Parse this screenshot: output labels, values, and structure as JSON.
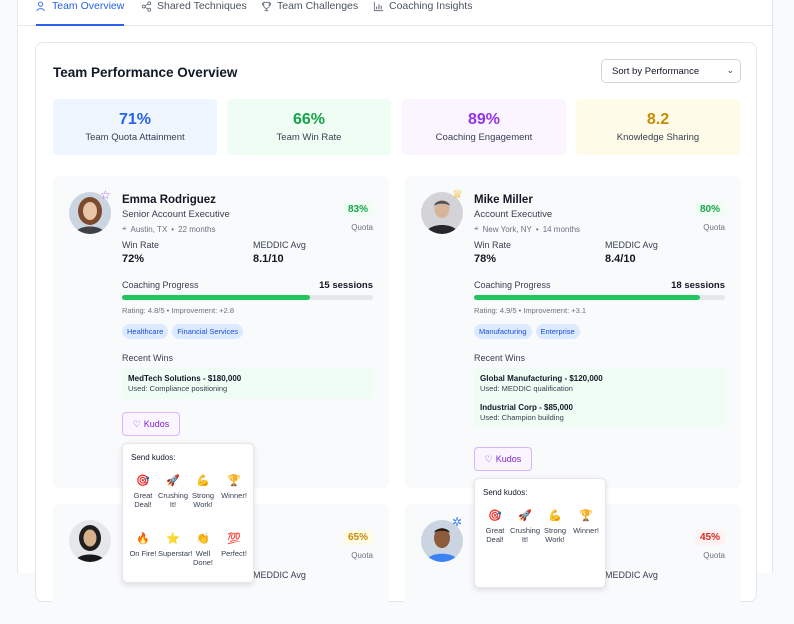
{
  "tabs": [
    {
      "label": "Team Overview",
      "icon": "users-icon",
      "active": true
    },
    {
      "label": "Shared Techniques",
      "icon": "share-icon",
      "active": false
    },
    {
      "label": "Team Challenges",
      "icon": "trophy-icon",
      "active": false
    },
    {
      "label": "Coaching Insights",
      "icon": "bar-chart-icon",
      "active": false
    }
  ],
  "panel": {
    "title": "Team Performance Overview",
    "sort_value": "Sort by Performance"
  },
  "stats": [
    {
      "value": "71%",
      "label": "Team Quota Attainment",
      "bg": "#eff6ff",
      "color": "#2563eb"
    },
    {
      "value": "66%",
      "label": "Team Win Rate",
      "bg": "#f0fdf4",
      "color": "#16a34a"
    },
    {
      "value": "89%",
      "label": "Coaching Engagement",
      "bg": "#faf5ff",
      "color": "#9333ea"
    },
    {
      "value": "8.2",
      "label": "Knowledge Sharing",
      "bg": "#fefce8",
      "color": "#ca8a04"
    }
  ],
  "cards": [
    {
      "name": "Emma Rodriguez",
      "role": "Senior Account Executive",
      "location": "Austin, TX",
      "tenure": "22 months",
      "quota": "83%",
      "quota_label": "Quota",
      "win_rate_label": "Win Rate",
      "win_rate": "72%",
      "meddic_label": "MEDDIC Avg",
      "meddic": "8.1/10",
      "coaching_label": "Coaching Progress",
      "sessions": "15 sessions",
      "progress": 0.75,
      "rating": "Rating: 4.8/5 • Improvement: +2.8",
      "tags": [
        "Healthcare",
        "Financial Services"
      ],
      "recent_wins_label": "Recent Wins",
      "wins": [
        {
          "name": "MedTech Solutions - $180,000",
          "used": "Used: Compliance positioning"
        }
      ],
      "kudos_label": "Kudos",
      "badge": "star-icon"
    },
    {
      "name": "Mike Miller",
      "role": "Account Executive",
      "location": "New York, NY",
      "tenure": "14 months",
      "quota": "80%",
      "quota_label": "Quota",
      "win_rate_label": "Win Rate",
      "win_rate": "78%",
      "meddic_label": "MEDDIC Avg",
      "meddic": "8.4/10",
      "coaching_label": "Coaching Progress",
      "sessions": "18 sessions",
      "progress": 0.9,
      "rating": "Rating: 4.9/5 • Improvement: +3.1",
      "tags": [
        "Manufacturing",
        "Enterprise"
      ],
      "recent_wins_label": "Recent Wins",
      "wins": [
        {
          "name": "Global Manufacturing - $120,000",
          "used": "Used: MEDDIC qualification"
        },
        {
          "name": "Industrial Corp - $85,000",
          "used": "Used: Champion building"
        }
      ],
      "kudos_label": "Kudos",
      "badge": "crown-icon"
    },
    {
      "quota": "65%",
      "quota_label": "Quota",
      "meddic_label": "MEDDIC Avg"
    },
    {
      "quota": "45%",
      "quota_label": "Quota",
      "meddic_label": "MEDDIC Avg"
    }
  ],
  "kudos_popup": {
    "title": "Send kudos:",
    "options": [
      {
        "emoji": "🎯",
        "label": "Great Deal!"
      },
      {
        "emoji": "🚀",
        "label": "Crushing It!"
      },
      {
        "emoji": "💪",
        "label": "Strong Work!"
      },
      {
        "emoji": "🏆",
        "label": "Winner!"
      },
      {
        "emoji": "🔥",
        "label": "On Fire!"
      },
      {
        "emoji": "⭐",
        "label": "Superstar!"
      },
      {
        "emoji": "👏",
        "label": "Well Done!"
      },
      {
        "emoji": "💯",
        "label": "Perfect!"
      }
    ]
  }
}
